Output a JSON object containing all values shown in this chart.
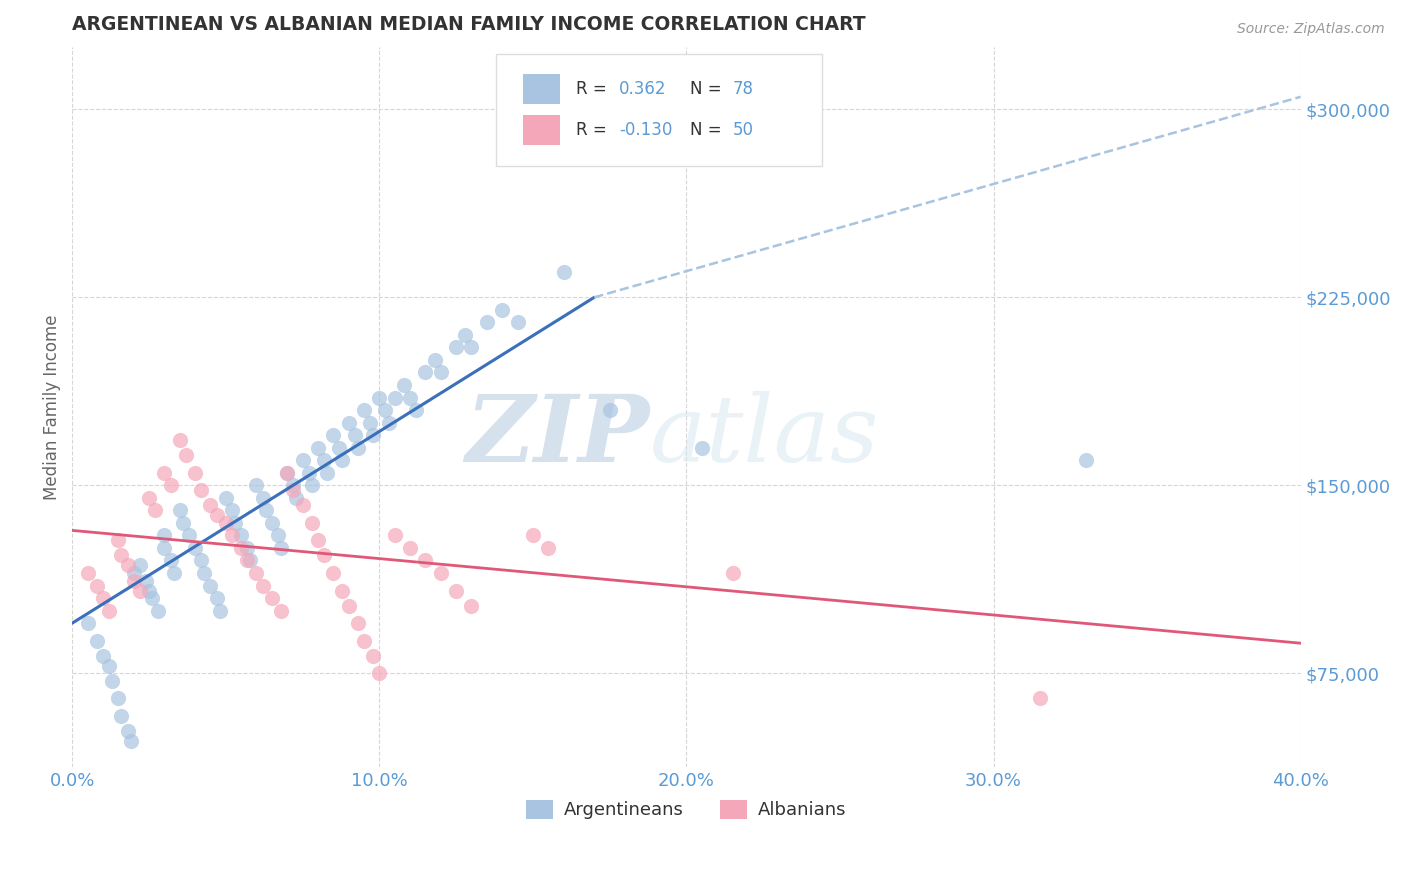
{
  "title": "ARGENTINEAN VS ALBANIAN MEDIAN FAMILY INCOME CORRELATION CHART",
  "source_text": "Source: ZipAtlas.com",
  "ylabel": "Median Family Income",
  "xlim": [
    0.0,
    0.4
  ],
  "ylim": [
    37500,
    325000
  ],
  "yticks": [
    75000,
    150000,
    225000,
    300000
  ],
  "ytick_labels": [
    "$75,000",
    "$150,000",
    "$225,000",
    "$300,000"
  ],
  "xticks": [
    0.0,
    0.1,
    0.2,
    0.3,
    0.4
  ],
  "xtick_labels": [
    "0.0%",
    "10.0%",
    "20.0%",
    "30.0%",
    "40.0%"
  ],
  "argentinean_color": "#a8c4e0",
  "albanian_color": "#f4a7b9",
  "trend_blue": "#3a6fba",
  "trend_pink": "#e05878",
  "trend_dashed_color": "#a8c4e0",
  "R_arg": 0.362,
  "N_arg": 78,
  "R_alb": -0.13,
  "N_alb": 50,
  "watermark_zip": "ZIP",
  "watermark_atlas": "atlas",
  "background_color": "#ffffff",
  "grid_color": "#cccccc",
  "title_color": "#333333",
  "axis_label_color": "#666666",
  "tick_color": "#5b9bd5",
  "argentinean_scatter_x": [
    0.005,
    0.008,
    0.01,
    0.012,
    0.013,
    0.015,
    0.016,
    0.018,
    0.019,
    0.02,
    0.022,
    0.024,
    0.025,
    0.026,
    0.028,
    0.03,
    0.03,
    0.032,
    0.033,
    0.035,
    0.036,
    0.038,
    0.04,
    0.042,
    0.043,
    0.045,
    0.047,
    0.048,
    0.05,
    0.052,
    0.053,
    0.055,
    0.057,
    0.058,
    0.06,
    0.062,
    0.063,
    0.065,
    0.067,
    0.068,
    0.07,
    0.072,
    0.073,
    0.075,
    0.077,
    0.078,
    0.08,
    0.082,
    0.083,
    0.085,
    0.087,
    0.088,
    0.09,
    0.092,
    0.093,
    0.095,
    0.097,
    0.098,
    0.1,
    0.102,
    0.103,
    0.105,
    0.108,
    0.11,
    0.112,
    0.115,
    0.118,
    0.12,
    0.125,
    0.128,
    0.13,
    0.135,
    0.14,
    0.145,
    0.16,
    0.175,
    0.205,
    0.33
  ],
  "argentinean_scatter_y": [
    95000,
    88000,
    82000,
    78000,
    72000,
    65000,
    58000,
    52000,
    48000,
    115000,
    118000,
    112000,
    108000,
    105000,
    100000,
    130000,
    125000,
    120000,
    115000,
    140000,
    135000,
    130000,
    125000,
    120000,
    115000,
    110000,
    105000,
    100000,
    145000,
    140000,
    135000,
    130000,
    125000,
    120000,
    150000,
    145000,
    140000,
    135000,
    130000,
    125000,
    155000,
    150000,
    145000,
    160000,
    155000,
    150000,
    165000,
    160000,
    155000,
    170000,
    165000,
    160000,
    175000,
    170000,
    165000,
    180000,
    175000,
    170000,
    185000,
    180000,
    175000,
    185000,
    190000,
    185000,
    180000,
    195000,
    200000,
    195000,
    205000,
    210000,
    205000,
    215000,
    220000,
    215000,
    235000,
    180000,
    165000,
    160000
  ],
  "albanian_scatter_x": [
    0.005,
    0.008,
    0.01,
    0.012,
    0.015,
    0.016,
    0.018,
    0.02,
    0.022,
    0.025,
    0.027,
    0.03,
    0.032,
    0.035,
    0.037,
    0.04,
    0.042,
    0.045,
    0.047,
    0.05,
    0.052,
    0.055,
    0.057,
    0.06,
    0.062,
    0.065,
    0.068,
    0.07,
    0.072,
    0.075,
    0.078,
    0.08,
    0.082,
    0.085,
    0.088,
    0.09,
    0.093,
    0.095,
    0.098,
    0.1,
    0.105,
    0.11,
    0.115,
    0.12,
    0.125,
    0.13,
    0.15,
    0.155,
    0.215,
    0.315
  ],
  "albanian_scatter_y": [
    115000,
    110000,
    105000,
    100000,
    128000,
    122000,
    118000,
    112000,
    108000,
    145000,
    140000,
    155000,
    150000,
    168000,
    162000,
    155000,
    148000,
    142000,
    138000,
    135000,
    130000,
    125000,
    120000,
    115000,
    110000,
    105000,
    100000,
    155000,
    148000,
    142000,
    135000,
    128000,
    122000,
    115000,
    108000,
    102000,
    95000,
    88000,
    82000,
    75000,
    130000,
    125000,
    120000,
    115000,
    108000,
    102000,
    130000,
    125000,
    115000,
    65000
  ]
}
